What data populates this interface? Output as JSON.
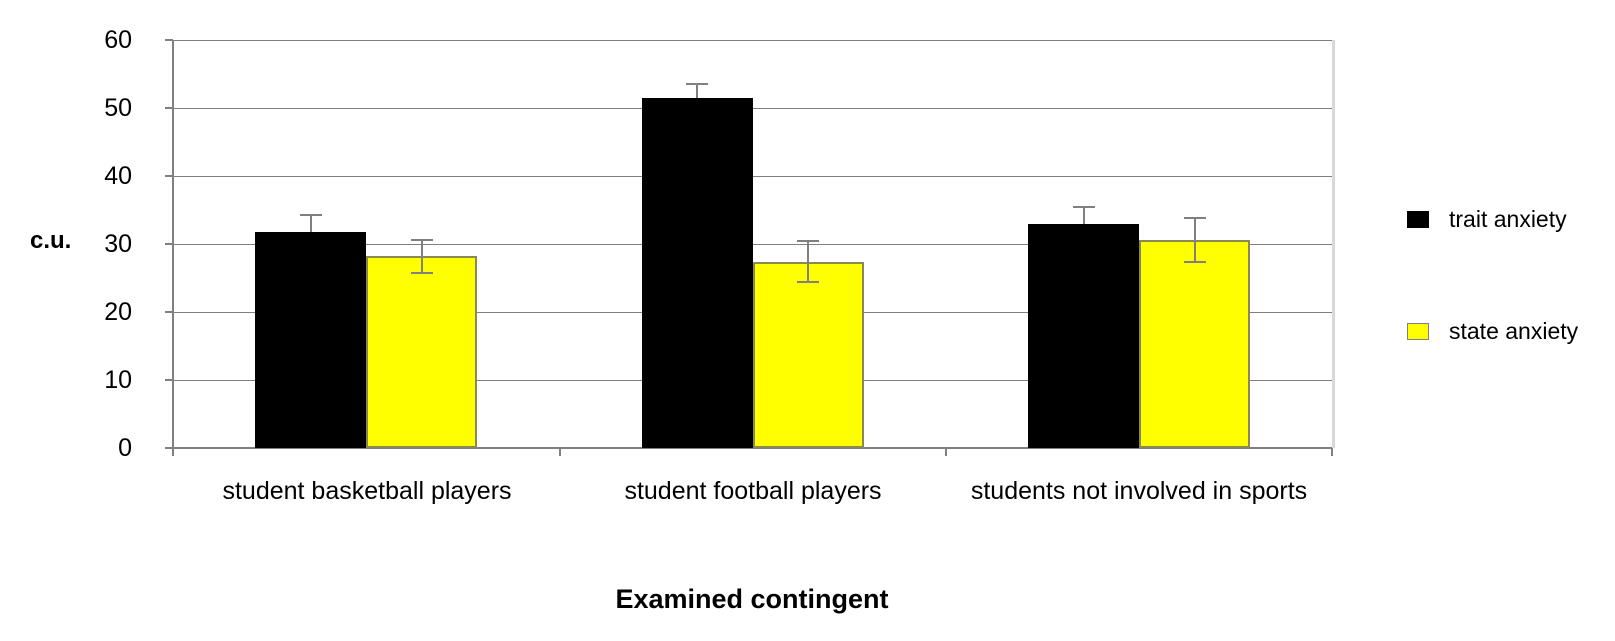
{
  "chart_data": {
    "type": "bar",
    "title": "",
    "categories": [
      "student basketball players",
      "student football players",
      "students not involved in sports"
    ],
    "series": [
      {
        "name": "trait anxiety",
        "color": "#000000",
        "values": [
          31.8,
          51.5,
          33.0
        ],
        "errors": [
          2.4,
          2.0,
          2.5
        ],
        "error_style": "plus"
      },
      {
        "name": "state anxiety",
        "color": "#ffff00",
        "values": [
          28.2,
          27.4,
          30.6
        ],
        "errors": [
          2.4,
          3.0,
          3.2
        ],
        "error_style": "plus-minus"
      }
    ],
    "ylabel": "c.u.",
    "xlabel": "Examined contingent",
    "ylim": [
      0,
      60
    ],
    "yticks": [
      0,
      10,
      20,
      30,
      40,
      50,
      60
    ],
    "grid": true,
    "legend_position": "right",
    "colors": {
      "gridline": "#808080",
      "axis": "#808080",
      "error_bar": "#808080",
      "background": "#ffffff"
    }
  }
}
